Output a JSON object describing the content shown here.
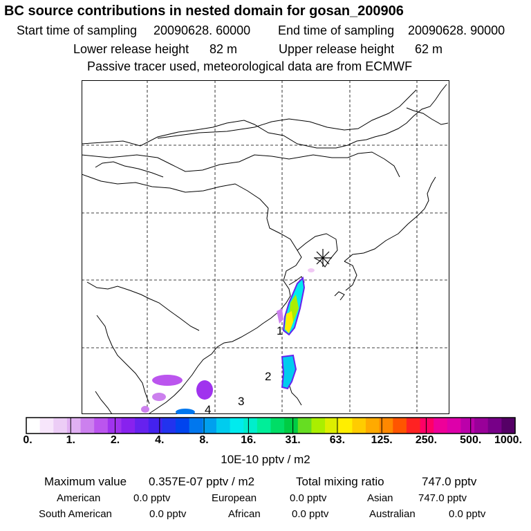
{
  "title": "BC  source contributions in nested domain for gosan_200906",
  "header": {
    "start_label": "Start time of sampling",
    "start_value": "20090628. 60000",
    "end_label": "End time of sampling",
    "end_value": "20090628. 90000",
    "lower_label": "Lower release height",
    "lower_value": "82 m",
    "upper_label": "Upper release height",
    "upper_value": "62 m",
    "note": "Passive tracer used, meteorological data are from ECMWF"
  },
  "map": {
    "region_labels": [
      "1",
      "2",
      "3",
      "4"
    ],
    "receptor": "gosan"
  },
  "colorbar": {
    "ticks": [
      "0.",
      "1.",
      "2.",
      "4.",
      "8.",
      "16.",
      "31.",
      "63.",
      "125.",
      "250.",
      "500.",
      "1000."
    ],
    "unit": "10E-10 pptv / m2",
    "colors": [
      "#ffffff",
      "#f7e6fb",
      "#eccdf6",
      "#e0b0f2",
      "#cc80ee",
      "#bb55ee",
      "#a033ee",
      "#8822ee",
      "#6622ee",
      "#4422ee",
      "#2233ee",
      "#0044ee",
      "#0077ee",
      "#00a0ee",
      "#00ccee",
      "#00ebee",
      "#00eecc",
      "#00ee99",
      "#00dd66",
      "#00cc44",
      "#66dd22",
      "#aaee00",
      "#ddee00",
      "#ffee00",
      "#ffcc00",
      "#ffaa00",
      "#ff8800",
      "#ff5500",
      "#ff2222",
      "#ff0066",
      "#ee0099",
      "#dd00aa",
      "#bb00aa",
      "#990099",
      "#770088",
      "#550066"
    ]
  },
  "summary": {
    "max_label": "Maximum value",
    "max_value": "0.357E-07 pptv / m2",
    "total_label": "Total mixing ratio",
    "total_value": "747.0 pptv",
    "american_label": "American",
    "american_value": "0.0 pptv",
    "european_label": "European",
    "european_value": "0.0 pptv",
    "asian_label": "Asian",
    "asian_value": "747.0 pptv",
    "south_american_label": "South American",
    "south_american_value": "0.0 pptv",
    "african_label": "African",
    "african_value": "0.0 pptv",
    "australian_label": "Australian",
    "australian_value": "0.0 pptv"
  }
}
